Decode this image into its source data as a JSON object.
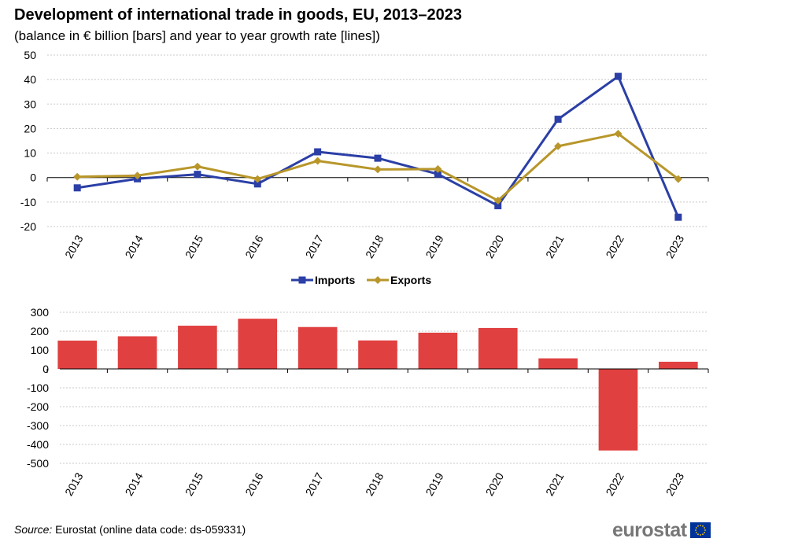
{
  "title": "Development of international trade in goods, EU, 2013–2023",
  "subtitle": "(balance in € billion [bars] and year to year growth rate [lines])",
  "source_label": "Source:",
  "source_text": " Eurostat (online data code: ds-059331)",
  "logo_text": "eurostat",
  "colors": {
    "imports": "#2B3FA6",
    "exports": "#B8962A",
    "balance": "#E04040",
    "grid": "#C8C8C8",
    "logo_text": "#777777",
    "flag": "#003399",
    "stars": "#FFCC00"
  },
  "chart_data": [
    {
      "type": "line",
      "categories": [
        "2013",
        "2014",
        "2015",
        "2016",
        "2017",
        "2018",
        "2019",
        "2020",
        "2021",
        "2022",
        "2023"
      ],
      "series": [
        {
          "name": "Imports",
          "color": "#2B3FA6",
          "marker": "square",
          "values": [
            -4.2,
            -0.5,
            1.3,
            -2.6,
            10.5,
            7.9,
            1.4,
            -11.5,
            23.8,
            41.3,
            -16.2
          ]
        },
        {
          "name": "Exports",
          "color": "#B8962A",
          "marker": "diamond",
          "values": [
            0.3,
            0.8,
            4.5,
            -0.6,
            6.8,
            3.3,
            3.5,
            -9.4,
            12.8,
            17.9,
            -0.6
          ]
        }
      ],
      "yticks": [
        50,
        40,
        30,
        20,
        10,
        0,
        -10,
        -20
      ],
      "ylim": [
        -20,
        50
      ],
      "grid": true,
      "legend": "bottom-center"
    },
    {
      "type": "bar",
      "categories": [
        "2013",
        "2014",
        "2015",
        "2016",
        "2017",
        "2018",
        "2019",
        "2020",
        "2021",
        "2022",
        "2023"
      ],
      "values": [
        150,
        173,
        229,
        266,
        222,
        151,
        192,
        217,
        56,
        -432,
        38
      ],
      "color": "#E04040",
      "yticks": [
        300,
        200,
        100,
        0,
        -100,
        -200,
        -300,
        -400,
        -500
      ],
      "ylim": [
        -500,
        300
      ],
      "grid": true
    }
  ]
}
